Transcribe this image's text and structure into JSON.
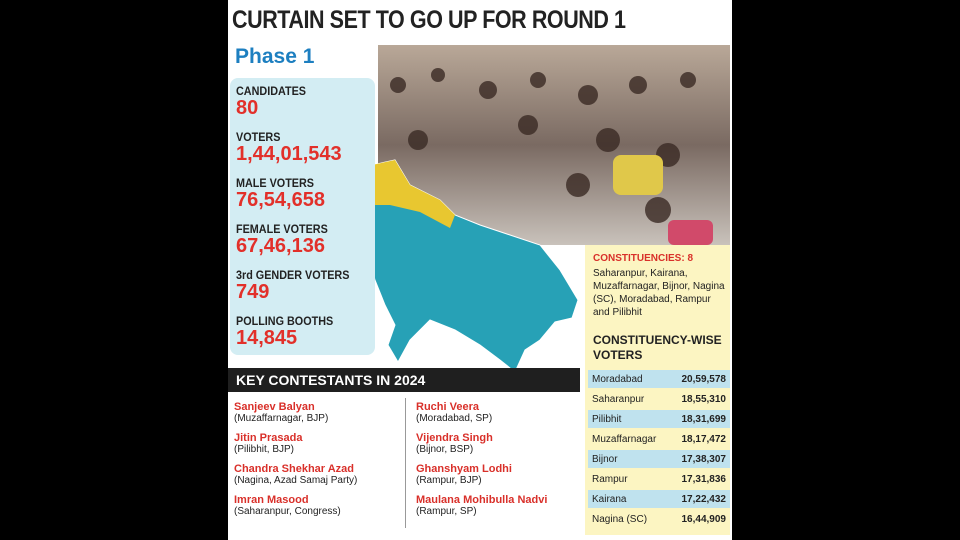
{
  "header": {
    "title": "CURTAIN SET TO GO UP FOR ROUND 1",
    "phase": "Phase 1"
  },
  "stats": [
    {
      "label": "CANDIDATES",
      "value": "80"
    },
    {
      "label": "VOTERS",
      "value": "1,44,01,543"
    },
    {
      "label": "MALE VOTERS",
      "value": "76,54,658"
    },
    {
      "label": "FEMALE VOTERS",
      "value": "67,46,136"
    },
    {
      "label": "3rd GENDER VOTERS",
      "value": "749"
    },
    {
      "label": "POLLING BOOTHS",
      "value": "14,845"
    }
  ],
  "constituencies": {
    "heading": "CONSTITUENCIES: 8",
    "list": "Saharanpur, Kairana, Muzaffarnagar, Bijnor, Nagina (SC), Moradabad, Rampur and Pilibhit",
    "table_title": "CONSTITUENCY-WISE VOTERS",
    "rows": [
      [
        "Moradabad",
        "20,59,578"
      ],
      [
        "Saharanpur",
        "18,55,310"
      ],
      [
        "Pilibhit",
        "18,31,699"
      ],
      [
        "Muzaffarnagar",
        "18,17,472"
      ],
      [
        "Bijnor",
        "17,38,307"
      ],
      [
        "Rampur",
        "17,31,836"
      ],
      [
        "Kairana",
        "17,22,432"
      ],
      [
        "Nagina (SC)",
        "16,44,909"
      ]
    ]
  },
  "key_contestants": {
    "heading": "KEY CONTESTANTS IN 2024",
    "people": [
      {
        "name": "Sanjeev Balyan",
        "detail": "(Muzaffarnagar, BJP)"
      },
      {
        "name": "Jitin Prasada",
        "detail": "(Pilibhit, BJP)"
      },
      {
        "name": "Chandra Shekhar Azad",
        "detail": "(Nagina, Azad Samaj Party)"
      },
      {
        "name": "Imran Masood",
        "detail": "(Saharanpur, Congress)"
      },
      {
        "name": "Ruchi Veera",
        "detail": "(Moradabad, SP)"
      },
      {
        "name": "Vijendra Singh",
        "detail": "(Bijnor, BSP)"
      },
      {
        "name": "Ghanshyam Lodhi",
        "detail": "(Rampur, BJP)"
      },
      {
        "name": "Maulana Mohibulla Nadvi",
        "detail": "(Rampur, SP)"
      }
    ]
  }
}
